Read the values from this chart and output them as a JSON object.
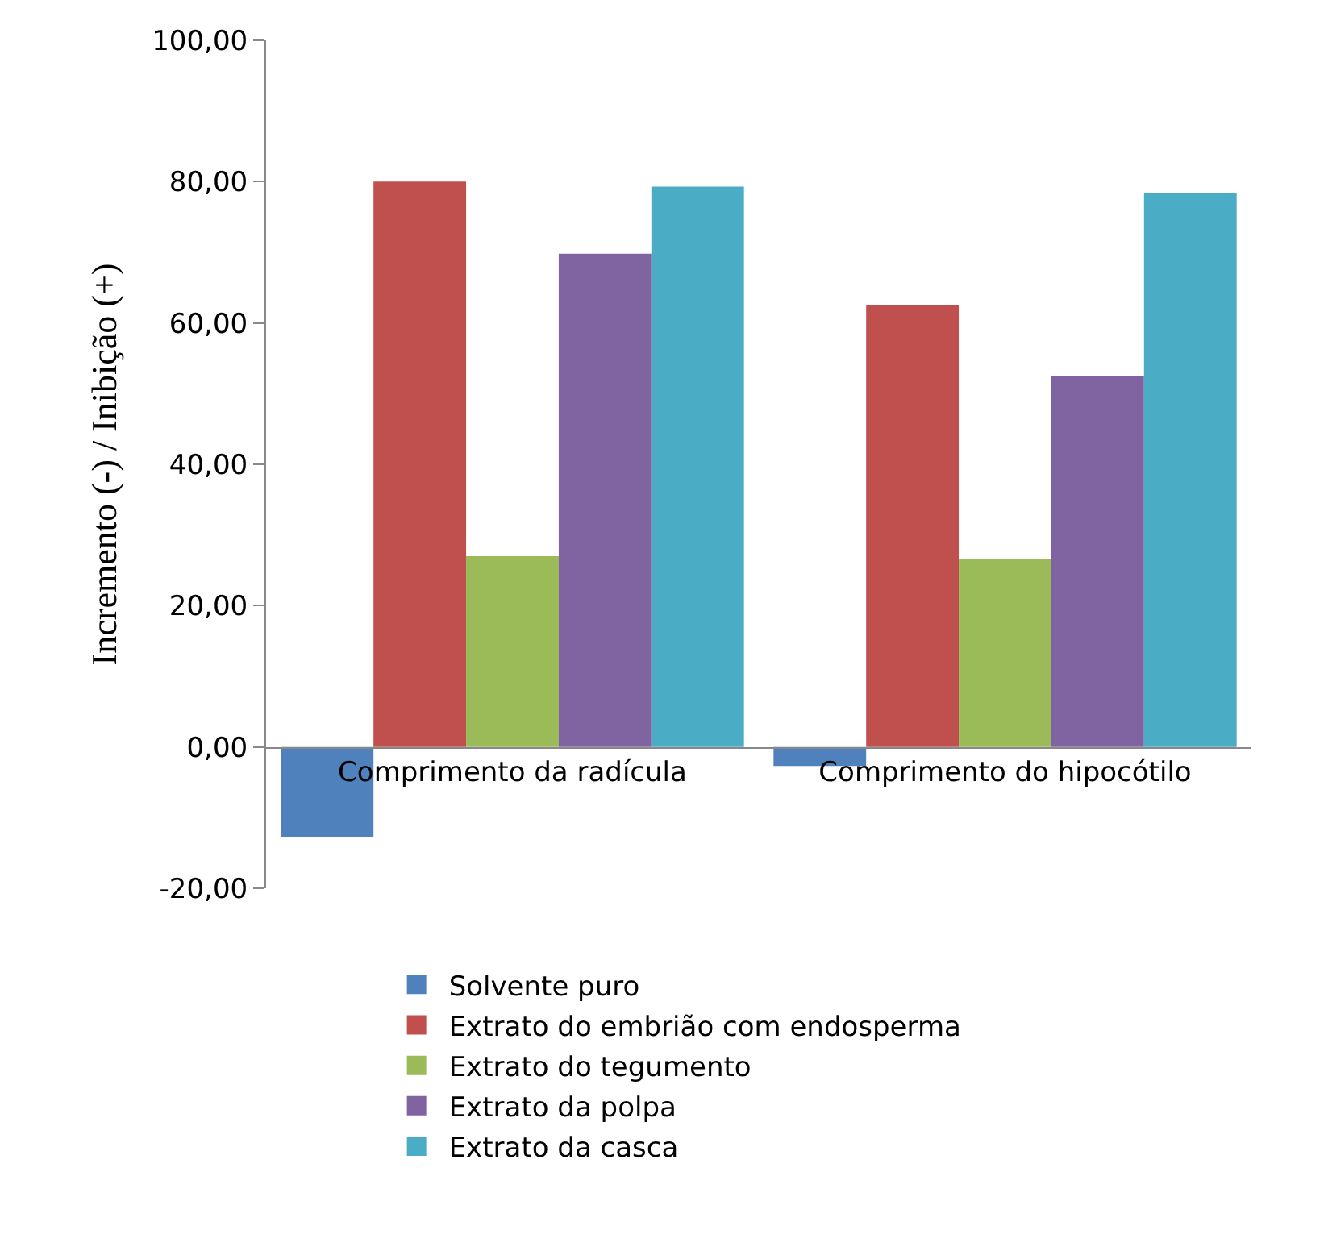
{
  "chart_data": {
    "type": "bar",
    "ylabel": "Incremento (-) / Inibição (+)",
    "categories": [
      "Comprimento da radícula",
      "Comprimento do hipocótilo"
    ],
    "series": [
      {
        "name": "Solvente puro",
        "color": "#4f81bd",
        "values": [
          -12.8,
          -2.7
        ]
      },
      {
        "name": "Extrato do embrião com endosperma",
        "color": "#c0504d",
        "values": [
          80.0,
          62.5
        ]
      },
      {
        "name": "Extrato do tegumento",
        "color": "#9bbb59",
        "values": [
          27.0,
          26.6
        ]
      },
      {
        "name": "Extrato da polpa",
        "color": "#8064a2",
        "values": [
          69.8,
          52.5
        ]
      },
      {
        "name": "Extrato da casca",
        "color": "#4bacc6",
        "values": [
          79.3,
          78.4
        ]
      }
    ],
    "ylim": [
      -20,
      100
    ],
    "yticks": [
      {
        "value": -20,
        "label": "-20,00"
      },
      {
        "value": 0,
        "label": "0,00"
      },
      {
        "value": 20,
        "label": "20,00"
      },
      {
        "value": 40,
        "label": "40,00"
      },
      {
        "value": 60,
        "label": "60,00"
      },
      {
        "value": 80,
        "label": "80,00"
      },
      {
        "value": 100,
        "label": "100,00"
      }
    ],
    "legend": "bottom"
  }
}
